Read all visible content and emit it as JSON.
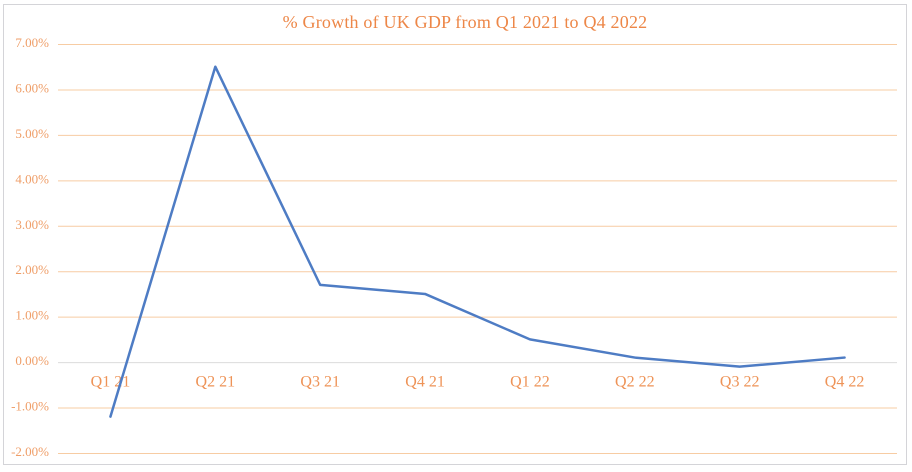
{
  "chart_data": {
    "type": "line",
    "title": "% Growth of UK GDP from Q1 2021 to Q4 2022",
    "categories": [
      "Q1 21",
      "Q2 21",
      "Q3 21",
      "Q4 21",
      "Q1 22",
      "Q2 22",
      "Q3 22",
      "Q4 22"
    ],
    "series": [
      {
        "name": "% Growth of UK GDP",
        "values": [
          -1.2,
          6.5,
          1.7,
          1.5,
          0.5,
          0.1,
          -0.1,
          0.1
        ]
      }
    ],
    "xlabel": "",
    "ylabel": "",
    "ylim": [
      -2,
      7
    ],
    "y_tick_step": 1,
    "y_tick_labels": [
      "-2.00%",
      "-1.00%",
      "0.00%",
      "1.00%",
      "2.00%",
      "3.00%",
      "4.00%",
      "5.00%",
      "6.00%",
      "7.00%"
    ],
    "grid": true,
    "legend_position": "none",
    "colors": {
      "line": "#4E7CC4",
      "gridline": "#F7CCA3",
      "zero_line": "#DCDCDC",
      "title": "#ED8748",
      "y_tick_label": "#EF9E68",
      "x_tick_label": "#EE9357",
      "frame_border": "#D4D4D8",
      "background": "#FFFFFF"
    }
  }
}
